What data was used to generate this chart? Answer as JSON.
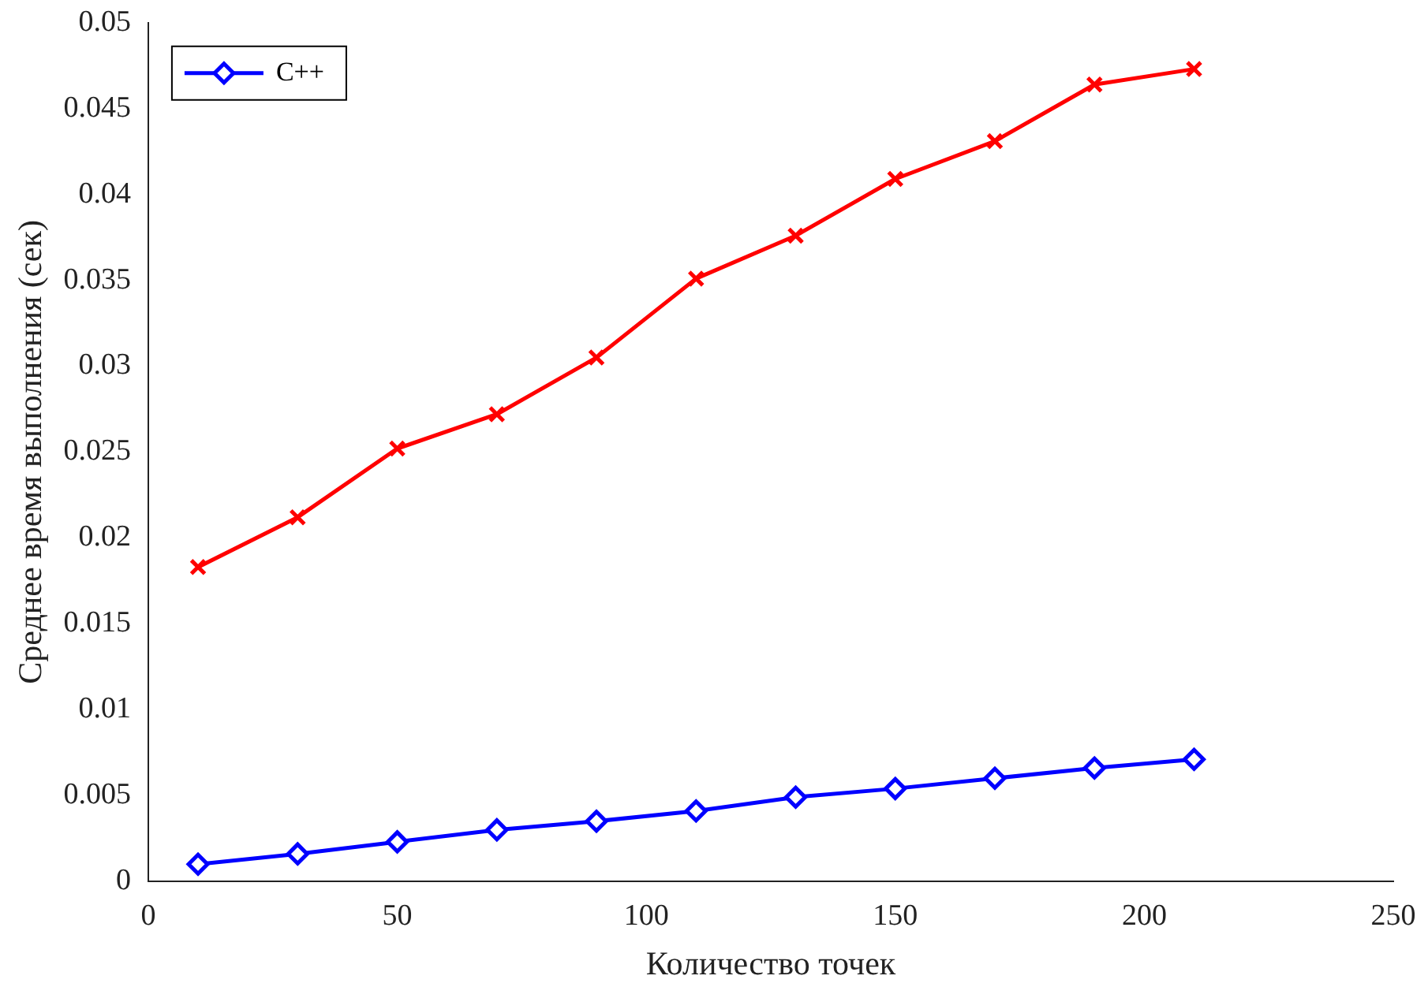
{
  "chart_data": {
    "type": "line",
    "xlabel": "Количество точек",
    "ylabel": "Среднее время выполнения (сек)",
    "x": [
      10,
      30,
      50,
      70,
      90,
      110,
      130,
      150,
      170,
      190,
      210
    ],
    "series": [
      {
        "color": "#ff0000",
        "marker": "cross",
        "values": [
          0.0183,
          0.0212,
          0.0252,
          0.0272,
          0.0305,
          0.0351,
          0.0376,
          0.0409,
          0.0431,
          0.0464,
          0.0473
        ]
      },
      {
        "name": "C++",
        "color": "#0000ff",
        "marker": "diamond",
        "values": [
          0.001,
          0.0016,
          0.0023,
          0.003,
          0.0035,
          0.0041,
          0.0049,
          0.0054,
          0.006,
          0.0066,
          0.0071
        ]
      }
    ],
    "xlim": [
      0,
      250
    ],
    "xticks": [
      0,
      50,
      100,
      150,
      200,
      250
    ],
    "ylim": [
      0,
      0.05
    ],
    "yticks": [
      0,
      0.005,
      0.01,
      0.015,
      0.02,
      0.025,
      0.03,
      0.035,
      0.04,
      0.045,
      0.05
    ],
    "grid": false,
    "legend": "top left",
    "line_style": "solid"
  }
}
